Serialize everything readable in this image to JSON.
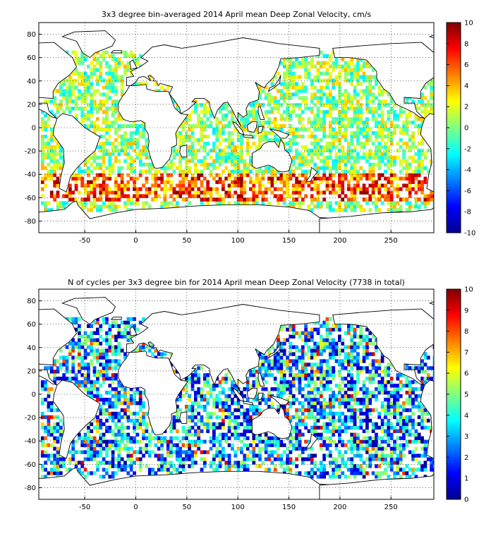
{
  "chart_data": [
    {
      "type": "heatmap",
      "title": "3x3 degree bin–averaged 2014 April mean Deep Zonal Velocity, cm/s",
      "xlabel": "",
      "ylabel": "",
      "xlim": [
        -95,
        292
      ],
      "ylim": [
        -90,
        90
      ],
      "x_ticks": [
        "-50",
        "0",
        "50",
        "100",
        "150",
        "200",
        "250"
      ],
      "y_ticks": [
        "80",
        "60",
        "40",
        "20",
        "0",
        "-20",
        "-40",
        "-60",
        "-80"
      ],
      "grid": true,
      "bin_size_deg": 3,
      "colorbar": {
        "min": -10,
        "max": 10,
        "ticks": [
          "10",
          "8",
          "6",
          "4",
          "2",
          "0",
          "-2",
          "-4",
          "-6",
          "-8",
          "-10"
        ]
      },
      "colors": [
        "#00008f",
        "#0000ff",
        "#0080ff",
        "#00ffff",
        "#80ff80",
        "#ffff00",
        "#ff8000",
        "#ff0000",
        "#800000"
      ]
    },
    {
      "type": "heatmap",
      "title": "N of cycles per 3x3 degree bin for 2014 April mean Deep Zonal Velocity (7738 in total)",
      "xlabel": "",
      "ylabel": "",
      "xlim": [
        -95,
        292
      ],
      "ylim": [
        -90,
        90
      ],
      "x_ticks": [
        "-50",
        "0",
        "50",
        "100",
        "150",
        "200",
        "250"
      ],
      "y_ticks": [
        "80",
        "60",
        "40",
        "20",
        "0",
        "-20",
        "-40",
        "-60",
        "-80"
      ],
      "grid": true,
      "bin_size_deg": 3,
      "total_cycles": 7738,
      "colorbar": {
        "min": 0,
        "max": 10,
        "ticks": [
          "10",
          "9",
          "8",
          "7",
          "6",
          "5",
          "4",
          "3",
          "2",
          "1",
          "0"
        ]
      },
      "colors": [
        "#00008f",
        "#0000ff",
        "#0080ff",
        "#00ffff",
        "#80ff80",
        "#ffff00",
        "#ff8000",
        "#ff0000",
        "#800000"
      ]
    }
  ]
}
